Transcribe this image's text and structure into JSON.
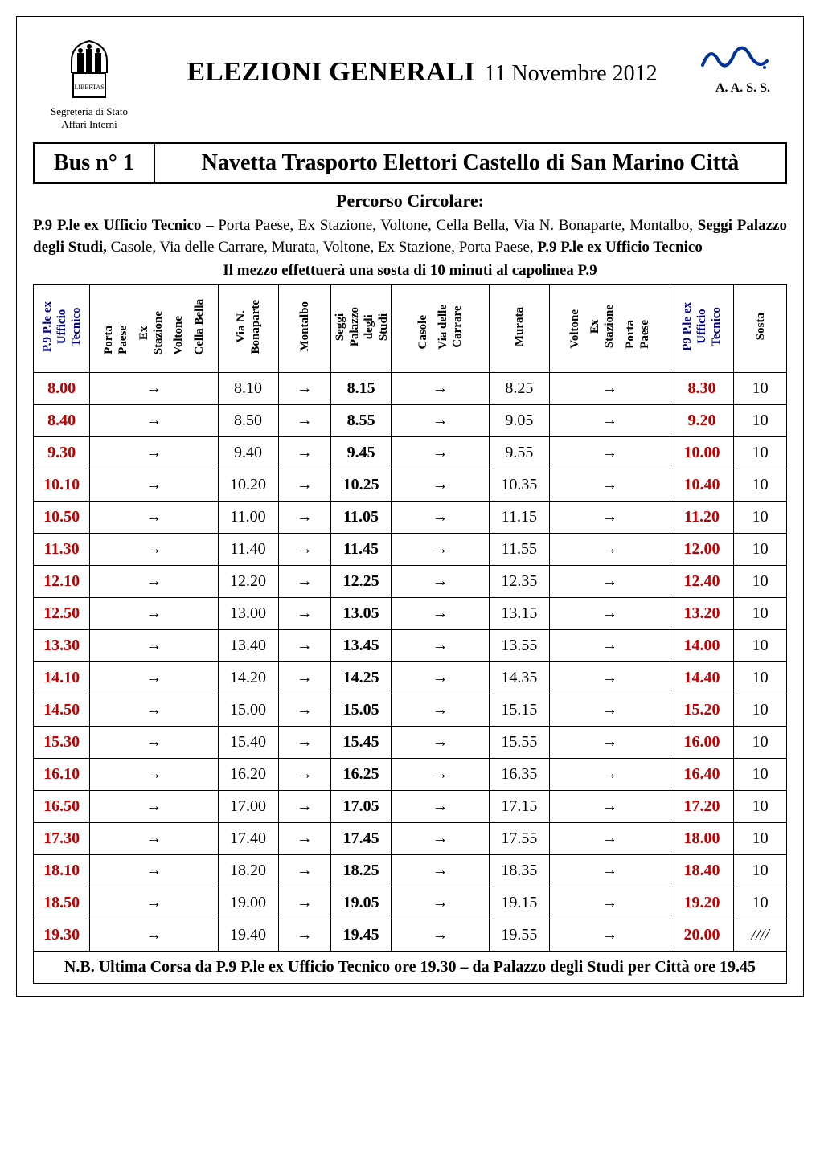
{
  "header": {
    "secretary_line1": "Segreteria di Stato",
    "secretary_line2": "Affari Interni",
    "title": "ELEZIONI GENERALI",
    "date": "11 Novembre 2012",
    "aass": "A. A. S. S."
  },
  "bus": {
    "number_label": "Bus n° 1",
    "title": "Navetta Trasporto Elettori Castello di San Marino Città"
  },
  "percorso": {
    "title": "Percorso Circolare:",
    "line1_bold1": "P.9 P.le ex Ufficio Tecnico",
    "line1_mid": " – Porta Paese, Ex Stazione, Voltone, Cella Bella, Via N. Bonaparte, Montalbo, ",
    "line1_bold2": "Seggi Palazzo degli Studi,",
    "line2_mid": " Casole, Via delle Carrare, Murata, Voltone, Ex Stazione, Porta Paese, ",
    "line2_bold": "P.9 P.le ex Ufficio Tecnico"
  },
  "mezzo_note": "Il mezzo effettuerà una sosta di 10 minuti al capolinea P.9",
  "columns": {
    "c1": "P.9 P.le ex\nUfficio\nTecnico",
    "c2": "Porta\nPaese",
    "c3": "Ex\nStazione",
    "c4": "Voltone",
    "c5": "Cella Bella",
    "c6": "Via N.\nBonaparte",
    "c7": "Montalbo",
    "c8": "Seggi\nPalazzo\ndegli\nStudi",
    "c9": "Casole",
    "c10": "Via delle\nCarrare",
    "c11": "Murata",
    "c12": "Voltone",
    "c13": "Ex\nStazione",
    "c14": "Porta\nPaese",
    "c15": "P9 P.le ex\nUfficio\nTecnico",
    "c16": "Sosta"
  },
  "rows": [
    {
      "depart": "8.00",
      "via": "8.10",
      "seggi": "8.15",
      "murata": "8.25",
      "arrive": "8.30",
      "sosta": "10"
    },
    {
      "depart": "8.40",
      "via": "8.50",
      "seggi": "8.55",
      "murata": "9.05",
      "arrive": "9.20",
      "sosta": "10"
    },
    {
      "depart": "9.30",
      "via": "9.40",
      "seggi": "9.45",
      "murata": "9.55",
      "arrive": "10.00",
      "sosta": "10"
    },
    {
      "depart": "10.10",
      "via": "10.20",
      "seggi": "10.25",
      "murata": "10.35",
      "arrive": "10.40",
      "sosta": "10"
    },
    {
      "depart": "10.50",
      "via": "11.00",
      "seggi": "11.05",
      "murata": "11.15",
      "arrive": "11.20",
      "sosta": "10"
    },
    {
      "depart": "11.30",
      "via": "11.40",
      "seggi": "11.45",
      "murata": "11.55",
      "arrive": "12.00",
      "sosta": "10"
    },
    {
      "depart": "12.10",
      "via": "12.20",
      "seggi": "12.25",
      "murata": "12.35",
      "arrive": "12.40",
      "sosta": "10"
    },
    {
      "depart": "12.50",
      "via": "13.00",
      "seggi": "13.05",
      "murata": "13.15",
      "arrive": "13.20",
      "sosta": "10"
    },
    {
      "depart": "13.30",
      "via": "13.40",
      "seggi": "13.45",
      "murata": "13.55",
      "arrive": "14.00",
      "sosta": "10"
    },
    {
      "depart": "14.10",
      "via": "14.20",
      "seggi": "14.25",
      "murata": "14.35",
      "arrive": "14.40",
      "sosta": "10"
    },
    {
      "depart": "14.50",
      "via": "15.00",
      "seggi": "15.05",
      "murata": "15.15",
      "arrive": "15.20",
      "sosta": "10"
    },
    {
      "depart": "15.30",
      "via": "15.40",
      "seggi": "15.45",
      "murata": "15.55",
      "arrive": "16.00",
      "sosta": "10"
    },
    {
      "depart": "16.10",
      "via": "16.20",
      "seggi": "16.25",
      "murata": "16.35",
      "arrive": "16.40",
      "sosta": "10"
    },
    {
      "depart": "16.50",
      "via": "17.00",
      "seggi": "17.05",
      "murata": "17.15",
      "arrive": "17.20",
      "sosta": "10"
    },
    {
      "depart": "17.30",
      "via": "17.40",
      "seggi": "17.45",
      "murata": "17.55",
      "arrive": "18.00",
      "sosta": "10"
    },
    {
      "depart": "18.10",
      "via": "18.20",
      "seggi": "18.25",
      "murata": "18.35",
      "arrive": "18.40",
      "sosta": "10"
    },
    {
      "depart": "18.50",
      "via": "19.00",
      "seggi": "19.05",
      "murata": "19.15",
      "arrive": "19.20",
      "sosta": "10"
    },
    {
      "depart": "19.30",
      "via": "19.40",
      "seggi": "19.45",
      "murata": "19.55",
      "arrive": "20.00",
      "sosta": "////"
    }
  ],
  "footer_note": "N.B. Ultima Corsa da P.9 P.le ex Ufficio Tecnico ore 19.30 – da Palazzo degli Studi per Città ore 19.45",
  "styling": {
    "accent_red": "#c00000",
    "accent_blue": "#000080",
    "border_color": "#000000",
    "background": "#ffffff",
    "font_family": "Times New Roman",
    "title_fontsize": 34,
    "subtitle_fontsize": 28,
    "table_header_fontsize": 15,
    "table_cell_fontsize": 20,
    "arrow_glyph": "→"
  }
}
